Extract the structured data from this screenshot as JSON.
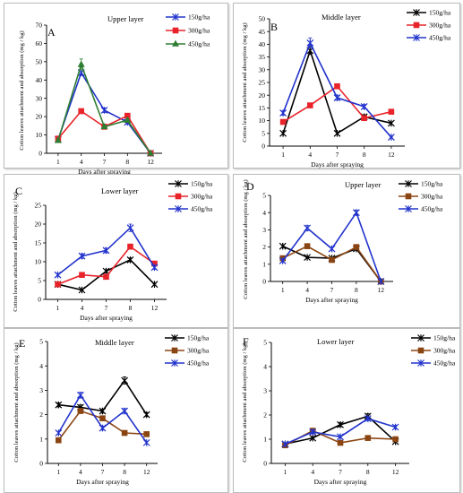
{
  "colors": {
    "series_150": "#000000",
    "series_300": "#e8232a",
    "series_450": "#2233cc",
    "series_300_alt": "#8b4513"
  },
  "chart_data": [
    {
      "id": "A",
      "type": "line",
      "letter": "A",
      "title": "Upper layer",
      "xlabel": "Days after spraying",
      "ylabel": "Cotton leaves attachment and absorption (mg / kg)",
      "categories": [
        "1",
        "4",
        "7",
        "8",
        "12"
      ],
      "ylim": [
        0,
        70
      ],
      "yticks": [
        0,
        10,
        20,
        30,
        40,
        50,
        60,
        70
      ],
      "grid": false,
      "legend": "top-right",
      "series": [
        {
          "name": "150g/ha",
          "color": "#2233cc",
          "marker": "cross",
          "values": [
            7.5,
            44,
            23.5,
            17,
            0
          ],
          "errors": [
            1,
            1.5,
            1.2,
            1,
            0
          ]
        },
        {
          "name": "300g/ha",
          "color": "#e8232a",
          "marker": "square",
          "values": [
            8,
            23,
            14.5,
            20.5,
            0
          ],
          "errors": [
            1,
            1,
            1,
            1,
            0
          ]
        },
        {
          "name": "450g/ha",
          "color": "#2e7d32",
          "marker": "triangle",
          "values": [
            7,
            48.5,
            14.5,
            18,
            0
          ],
          "errors": [
            1,
            3,
            1,
            1,
            0
          ]
        }
      ]
    },
    {
      "id": "B",
      "type": "line",
      "letter": "B",
      "title": "Middle layer",
      "xlabel": "Days after spraying",
      "ylabel": "Cotton leaves attachment and absorption (mg / kg)",
      "categories": [
        "1",
        "4",
        "7",
        "8",
        "12"
      ],
      "ylim": [
        0,
        50
      ],
      "yticks": [
        0,
        5,
        10,
        15,
        20,
        25,
        30,
        35,
        40,
        45,
        50
      ],
      "grid": false,
      "legend": "top-right",
      "series": [
        {
          "name": "150g/ha",
          "color": "#000000",
          "marker": "cross",
          "values": [
            5,
            37.5,
            5,
            11.5,
            9
          ],
          "errors": [
            0.5,
            1.5,
            0.5,
            0.8,
            0.5
          ]
        },
        {
          "name": "300g/ha",
          "color": "#e8232a",
          "marker": "square",
          "values": [
            9.5,
            16,
            23.5,
            11,
            13.5
          ],
          "errors": [
            0.5,
            0.8,
            1,
            0.8,
            0.5
          ]
        },
        {
          "name": "450g/ha",
          "color": "#2233cc",
          "marker": "cross",
          "values": [
            13,
            40.5,
            19,
            15.5,
            3.5
          ],
          "errors": [
            0.8,
            2,
            1,
            0.8,
            0.3
          ]
        }
      ]
    },
    {
      "id": "C",
      "type": "line",
      "letter": "C",
      "title": "Lower layer",
      "xlabel": "Days after spraying",
      "ylabel": "Cotton leaves attachment and absorption (mg / kg)",
      "categories": [
        "1",
        "4",
        "7",
        "8",
        "12"
      ],
      "ylim": [
        0,
        25
      ],
      "yticks": [
        0,
        5,
        10,
        15,
        20,
        25
      ],
      "grid": false,
      "legend": "top-right",
      "series": [
        {
          "name": "150g/ha",
          "color": "#000000",
          "marker": "cross",
          "values": [
            4,
            2.5,
            7.5,
            10.5,
            4
          ],
          "errors": [
            0.3,
            0.2,
            0.4,
            0.5,
            0.2
          ]
        },
        {
          "name": "300g/ha",
          "color": "#e8232a",
          "marker": "square",
          "values": [
            4,
            6.5,
            6,
            14,
            9.5
          ],
          "errors": [
            0.3,
            0.3,
            0.4,
            0.7,
            0.4
          ]
        },
        {
          "name": "450g/ha",
          "color": "#2233cc",
          "marker": "cross",
          "values": [
            6.5,
            11.5,
            13,
            19,
            8.5
          ],
          "errors": [
            0.3,
            0.6,
            0.6,
            1,
            0.5
          ]
        }
      ]
    },
    {
      "id": "D",
      "type": "line",
      "letter": "D",
      "title": "Upper layer",
      "xlabel": "Days after spraying",
      "ylabel": "Cotton leaves attachment and absorption (mg / kg)",
      "categories": [
        "1",
        "4",
        "7",
        "8",
        "12"
      ],
      "ylim": [
        0,
        5
      ],
      "yticks": [
        0,
        1,
        2,
        3,
        4,
        5
      ],
      "grid": false,
      "legend": "top-right",
      "series": [
        {
          "name": "150g/ha",
          "color": "#000000",
          "marker": "cross",
          "values": [
            2.05,
            1.4,
            1.35,
            1.9,
            0
          ],
          "errors": [
            0.08,
            0.05,
            0.05,
            0.08,
            0
          ]
        },
        {
          "name": "300g/ha",
          "color": "#8b4513",
          "marker": "square",
          "values": [
            1.35,
            2.05,
            1.25,
            2,
            0
          ],
          "errors": [
            0.08,
            0.08,
            0.05,
            0.08,
            0
          ]
        },
        {
          "name": "450g/ha",
          "color": "#2233cc",
          "marker": "cross",
          "values": [
            1.2,
            3.1,
            1.9,
            4,
            0
          ],
          "errors": [
            0.08,
            0.15,
            0.08,
            0.15,
            0
          ]
        }
      ]
    },
    {
      "id": "E",
      "type": "line",
      "letter": "E",
      "title": "Middle layer",
      "xlabel": "Days after spraying",
      "ylabel": "Cotton leaves attachment and absorption (mg / kg)",
      "categories": [
        "1",
        "4",
        "7",
        "8",
        "12"
      ],
      "ylim": [
        0,
        5
      ],
      "yticks": [
        0,
        1,
        2,
        3,
        4,
        5
      ],
      "grid": false,
      "legend": "top-right",
      "series": [
        {
          "name": "150g/ha",
          "color": "#000000",
          "marker": "cross",
          "values": [
            2.4,
            2.3,
            2.15,
            3.4,
            2
          ],
          "errors": [
            0.08,
            0.1,
            0.08,
            0.15,
            0.08
          ]
        },
        {
          "name": "300g/ha",
          "color": "#8b4513",
          "marker": "square",
          "values": [
            0.95,
            2.15,
            1.85,
            1.25,
            1.2
          ],
          "errors": [
            0.05,
            0.1,
            0.08,
            0.05,
            0.05
          ]
        },
        {
          "name": "450g/ha",
          "color": "#2233cc",
          "marker": "cross",
          "values": [
            1.25,
            2.8,
            1.45,
            2.15,
            0.85
          ],
          "errors": [
            0.05,
            0.12,
            0.08,
            0.1,
            0.05
          ]
        }
      ]
    },
    {
      "id": "F",
      "type": "line",
      "letter": "F",
      "title": "Lower layer",
      "xlabel": "Days after spraying",
      "ylabel": "Cotton leaves attachment and absorption (mg / kg)",
      "categories": [
        "1",
        "4",
        "7",
        "8",
        "12"
      ],
      "ylim": [
        0,
        5
      ],
      "yticks": [
        0,
        1,
        2,
        3,
        4,
        5
      ],
      "grid": false,
      "legend": "top-right",
      "series": [
        {
          "name": "150g/ha",
          "color": "#000000",
          "marker": "cross",
          "values": [
            0.8,
            1.05,
            1.6,
            1.95,
            0.9
          ],
          "errors": [
            0.05,
            0.05,
            0.08,
            0.1,
            0.05
          ]
        },
        {
          "name": "300g/ha",
          "color": "#8b4513",
          "marker": "square",
          "values": [
            0.75,
            1.35,
            0.85,
            1.05,
            1
          ],
          "errors": [
            0.05,
            0.08,
            0.05,
            0.05,
            0.05
          ]
        },
        {
          "name": "450g/ha",
          "color": "#2233cc",
          "marker": "cross",
          "values": [
            0.8,
            1.3,
            1.1,
            1.85,
            1.5
          ],
          "errors": [
            0.05,
            0.08,
            0.05,
            0.08,
            0.08
          ]
        }
      ]
    }
  ]
}
